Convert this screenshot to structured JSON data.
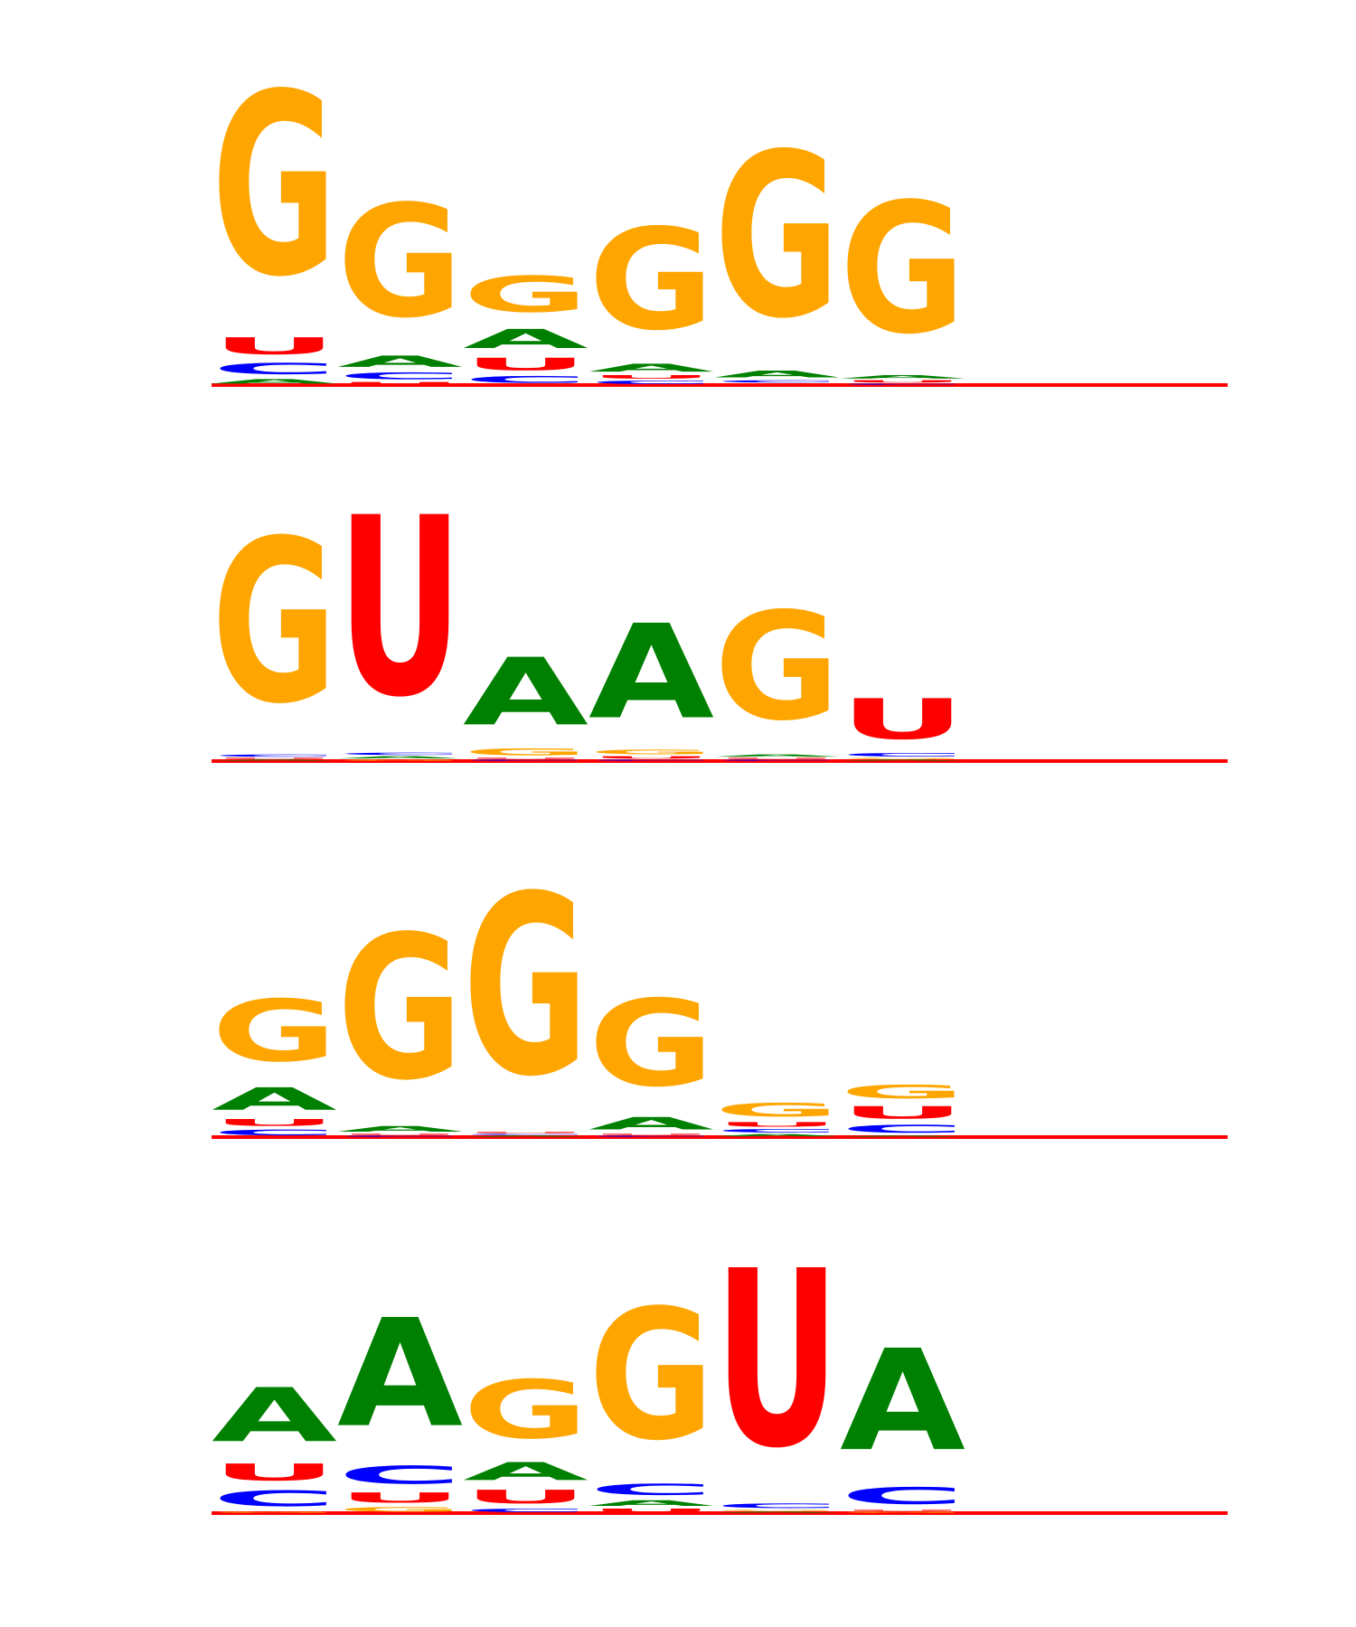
{
  "colors": {
    "A": "#008000",
    "C": "#0000ff",
    "G": "#ffa500",
    "U": "#ff0000",
    "baseline": "#ff0000"
  },
  "chart_data": [
    {
      "type": "sequence-logo",
      "alphabet": [
        "A",
        "C",
        "G",
        "U"
      ],
      "positions": [
        {
          "A": 0.04,
          "C": 0.1,
          "G": 1.62,
          "U": 0.15
        },
        {
          "A": 0.1,
          "C": 0.06,
          "G": 1.0,
          "U": 0.02
        },
        {
          "A": 0.17,
          "C": 0.06,
          "G": 0.32,
          "U": 0.11
        },
        {
          "A": 0.07,
          "C": 0.03,
          "G": 0.9,
          "U": 0.03
        },
        {
          "A": 0.06,
          "C": 0.02,
          "G": 1.46,
          "U": 0.01
        },
        {
          "A": 0.03,
          "C": 0.01,
          "G": 1.16,
          "U": 0.02
        }
      ]
    },
    {
      "type": "sequence-logo",
      "alphabet": [
        "A",
        "C",
        "G",
        "U"
      ],
      "positions": [
        {
          "A": 0.01,
          "C": 0.02,
          "G": 1.45,
          "U": 0.01
        },
        {
          "A": 0.02,
          "C": 0.02,
          "G": 0.01,
          "U": 1.59
        },
        {
          "A": 0.6,
          "C": 0.01,
          "G": 0.06,
          "U": 0.01
        },
        {
          "A": 0.84,
          "C": 0.01,
          "G": 0.04,
          "U": 0.02
        },
        {
          "A": 0.02,
          "C": 0.01,
          "G": 0.96,
          "U": 0.01
        },
        {
          "A": 0.01,
          "C": 0.03,
          "G": 0.01,
          "U": 0.36
        }
      ]
    },
    {
      "type": "sequence-logo",
      "alphabet": [
        "A",
        "C",
        "G",
        "U"
      ],
      "positions": [
        {
          "A": 0.2,
          "C": 0.05,
          "G": 0.55,
          "U": 0.06
        },
        {
          "A": 0.05,
          "C": 0.01,
          "G": 1.28,
          "U": 0.01
        },
        {
          "A": 0.01,
          "C": 0.01,
          "G": 1.6,
          "U": 0.01
        },
        {
          "A": 0.11,
          "C": 0.01,
          "G": 0.77,
          "U": 0.01
        },
        {
          "A": 0.02,
          "C": 0.03,
          "G": 0.12,
          "U": 0.04
        },
        {
          "A": 0.01,
          "C": 0.07,
          "G": 0.12,
          "U": 0.11
        }
      ]
    },
    {
      "type": "sequence-logo",
      "alphabet": [
        "A",
        "C",
        "G",
        "U"
      ],
      "positions": [
        {
          "A": 0.48,
          "C": 0.14,
          "G": 0.01,
          "U": 0.15
        },
        {
          "A": 0.96,
          "C": 0.16,
          "G": 0.04,
          "U": 0.09
        },
        {
          "A": 0.16,
          "C": 0.03,
          "G": 0.52,
          "U": 0.12
        },
        {
          "A": 0.05,
          "C": 0.1,
          "G": 1.16,
          "U": 0.03
        },
        {
          "A": 0.01,
          "C": 0.04,
          "G": 0.01,
          "U": 1.57
        },
        {
          "A": 0.9,
          "C": 0.15,
          "G": 0.01,
          "U": 0.01
        }
      ]
    }
  ]
}
